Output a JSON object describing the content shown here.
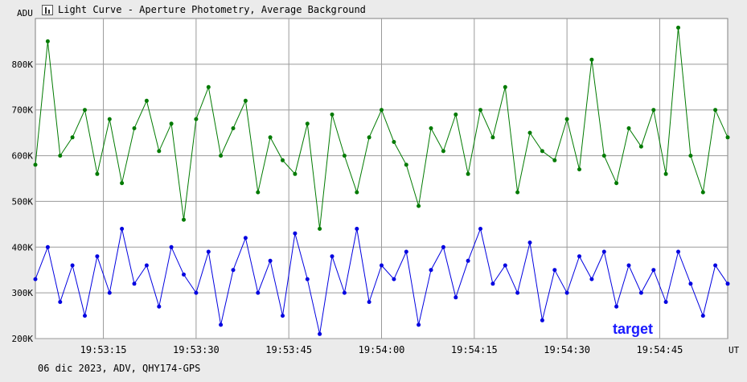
{
  "window": {
    "title": "Light Curve - Aperture Photometry, Average Background",
    "footer": "06 dic 2023, ADV, QHY174-GPS"
  },
  "chart_data": {
    "type": "line",
    "title": "Light Curve - Aperture Photometry, Average Background",
    "ylabel": "ADU",
    "xlabel": "UT",
    "ylim": [
      200000,
      900000
    ],
    "xlim": [
      "19:53:04",
      "19:54:56"
    ],
    "y_ticks": [
      {
        "value": 200000,
        "label": "200K"
      },
      {
        "value": 300000,
        "label": "300K"
      },
      {
        "value": 400000,
        "label": "400K"
      },
      {
        "value": 500000,
        "label": "500K"
      },
      {
        "value": 600000,
        "label": "600K"
      },
      {
        "value": 700000,
        "label": "700K"
      },
      {
        "value": 800000,
        "label": "800K"
      }
    ],
    "x_ticks": [
      "19:53:15",
      "19:53:30",
      "19:53:45",
      "19:54:00",
      "19:54:15",
      "19:54:30",
      "19:54:45"
    ],
    "grid": true,
    "series": [
      {
        "name": "",
        "color": "#007a00",
        "x": [
          "19:53:04",
          "19:53:06",
          "19:53:08",
          "19:53:10",
          "19:53:12",
          "19:53:14",
          "19:53:16",
          "19:53:18",
          "19:53:20",
          "19:53:22",
          "19:53:24",
          "19:53:26",
          "19:53:28",
          "19:53:30",
          "19:53:32",
          "19:53:34",
          "19:53:36",
          "19:53:38",
          "19:53:40",
          "19:53:42",
          "19:53:44",
          "19:53:46",
          "19:53:48",
          "19:53:50",
          "19:53:52",
          "19:53:54",
          "19:53:56",
          "19:53:58",
          "19:54:00",
          "19:54:02",
          "19:54:04",
          "19:54:06",
          "19:54:08",
          "19:54:10",
          "19:54:12",
          "19:54:14",
          "19:54:16",
          "19:54:18",
          "19:54:20",
          "19:54:22",
          "19:54:24",
          "19:54:26",
          "19:54:28",
          "19:54:30",
          "19:54:32",
          "19:54:34",
          "19:54:36",
          "19:54:38",
          "19:54:40",
          "19:54:42",
          "19:54:44",
          "19:54:46",
          "19:54:48",
          "19:54:50",
          "19:54:52",
          "19:54:54",
          "19:54:56"
        ],
        "values": [
          580000,
          850000,
          600000,
          640000,
          700000,
          560000,
          680000,
          540000,
          660000,
          720000,
          610000,
          670000,
          460000,
          680000,
          750000,
          600000,
          660000,
          720000,
          520000,
          640000,
          590000,
          560000,
          670000,
          440000,
          690000,
          600000,
          520000,
          640000,
          700000,
          630000,
          580000,
          490000,
          660000,
          610000,
          690000,
          560000,
          700000,
          640000,
          750000,
          520000,
          650000,
          610000,
          590000,
          680000,
          570000,
          810000,
          600000,
          540000,
          660000,
          620000,
          700000,
          560000,
          880000,
          600000,
          520000,
          700000,
          640000
        ]
      },
      {
        "name": "target",
        "color": "#0000e0",
        "x": [
          "19:53:04",
          "19:53:06",
          "19:53:08",
          "19:53:10",
          "19:53:12",
          "19:53:14",
          "19:53:16",
          "19:53:18",
          "19:53:20",
          "19:53:22",
          "19:53:24",
          "19:53:26",
          "19:53:28",
          "19:53:30",
          "19:53:32",
          "19:53:34",
          "19:53:36",
          "19:53:38",
          "19:53:40",
          "19:53:42",
          "19:53:44",
          "19:53:46",
          "19:53:48",
          "19:53:50",
          "19:53:52",
          "19:53:54",
          "19:53:56",
          "19:53:58",
          "19:54:00",
          "19:54:02",
          "19:54:04",
          "19:54:06",
          "19:54:08",
          "19:54:10",
          "19:54:12",
          "19:54:14",
          "19:54:16",
          "19:54:18",
          "19:54:20",
          "19:54:22",
          "19:54:24",
          "19:54:26",
          "19:54:28",
          "19:54:30",
          "19:54:32",
          "19:54:34",
          "19:54:36",
          "19:54:38",
          "19:54:40",
          "19:54:42",
          "19:54:44",
          "19:54:46",
          "19:54:48",
          "19:54:50",
          "19:54:52",
          "19:54:54",
          "19:54:56"
        ],
        "values": [
          330000,
          400000,
          280000,
          360000,
          250000,
          380000,
          300000,
          440000,
          320000,
          360000,
          270000,
          400000,
          340000,
          300000,
          390000,
          230000,
          350000,
          420000,
          300000,
          370000,
          250000,
          430000,
          330000,
          210000,
          380000,
          300000,
          440000,
          280000,
          360000,
          330000,
          390000,
          230000,
          350000,
          400000,
          290000,
          370000,
          440000,
          320000,
          360000,
          300000,
          410000,
          240000,
          350000,
          300000,
          380000,
          330000,
          390000,
          270000,
          360000,
          300000,
          350000,
          280000,
          390000,
          320000,
          250000,
          360000,
          320000
        ]
      }
    ]
  },
  "legend": {
    "target_label": "target"
  }
}
